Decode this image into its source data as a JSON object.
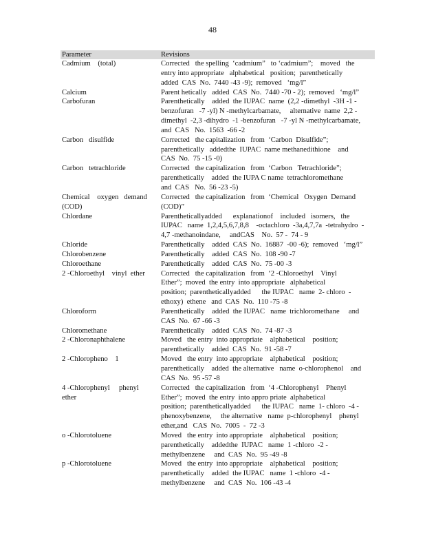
{
  "page_number": "48",
  "table": {
    "headers": [
      "Parameter",
      "Revisions"
    ],
    "rows": [
      {
        "param": [
          "Cadmium    (total)"
        ],
        "rev": [
          "Corrected   the spelling  ‘cadmium”   to ‘cadmium”;    moved   the",
          "entry into appropriate   alphabetical   position;  parenthetically",
          "added  CAS  No.  7440 -43 -9);  removed   ‘mg/l”"
        ]
      },
      {
        "param": [
          "Calcium"
        ],
        "rev": [
          "Parent hetically   added  CAS  No.  7440 -70 - 2);  removed   ‘mg/l”"
        ]
      },
      {
        "param": [
          "Carbofuran"
        ],
        "rev": [
          "Parenthetically    added  the IUPAC  name  (2,2 -dimethyl  -3H -1 -",
          "benzofuran   -7 -yl) N -methylcarbamate,     alternative  name  2,2 -",
          "dimethyl  -2,3 -dihydro  -1 -benzofuran   -7 -yl N -methylcarbamate,",
          "and  CAS   No.  1563  -66 -2"
        ]
      },
      {
        "param": [
          "Carbon   disulfide"
        ],
        "rev": [
          "Corrected   the capitalization   from  ‘Carbon  Disulfide”;",
          "parenthetically   addedthe  IUPAC  name methanedithione    and",
          "CAS  No.  75 -15 -0)"
        ]
      },
      {
        "param": [
          "Carbon   tetrachloride"
        ],
        "rev": [
          "Corrected   the capitalization   from  ‘Carbon   Tetrachloride”;",
          "parenthetically    added  the IUPA C name  tetrachloromethane",
          "and  CAS   No.  56 -23 -5)"
        ]
      },
      {
        "param": [
          "Chemical    oxygen   demand",
          "(COD)"
        ],
        "rev": [
          "Corrected   the capitalization   from  ‘Chemical   Oxygen  Demand",
          "(COD)”"
        ]
      },
      {
        "param": [
          "Chlordane"
        ],
        "rev": [
          "Parentheticallyadded      explanationof    included   isomers,   the",
          "IUPAC   name  1,2,4,5,6,7,8,8    -octachloro  -3a,4,7,7a  -tetrahydro  -",
          "4,7 -methanoindane,     andCAS    No.  57 -  74 - 9"
        ]
      },
      {
        "param": [
          "Chloride"
        ],
        "rev": [
          "Parenthetically    added  CAS  No.  16887  -00 -6);  removed   ‘mg/l”"
        ]
      },
      {
        "param": [
          "Chlorobenzene"
        ],
        "rev": [
          "Parenthetically    added  CAS  No.  108 -90 -7"
        ]
      },
      {
        "param": [
          "Chloroethane"
        ],
        "rev": [
          "Parenthetically    added  CAS  No.  75 -00 -3"
        ]
      },
      {
        "param": [
          "2 -Chloroethyl    vinyl  ether"
        ],
        "rev": [
          "Corrected   the capitalization   from  ‘2 -Chloroethyl    Vinyl",
          "Ether”;  moved  the entry  into appropriate   alphabetical",
          "position;  parentheticallyadded      the IUPAC   name  2- chloro  -",
          "ethoxy)  ethene   and  CAS  No.  110 -75 -8"
        ]
      },
      {
        "param": [
          "Chloroform"
        ],
        "rev": [
          "Parenthetically    added  the IUPAC   name  trichloromethane     and",
          "CAS  No.  67 -66 -3"
        ]
      },
      {
        "param": [
          "Chloromethane"
        ],
        "rev": [
          "Parenthetically    added  CAS  No.  74 -87 -3"
        ]
      },
      {
        "param": [
          "2 -Chloronaphthalene"
        ],
        "rev": [
          "Moved   the entry  into appropriate    alphabetical    position;",
          "parenthetically    added  CAS  No.  91 -58 -7"
        ]
      },
      {
        "param": [
          "2 -Chloropheno    1"
        ],
        "rev": [
          "Moved   the entry  into appropriate    alphabetical    position;",
          "parenthetically    added  the alternative   name  o-chlorophenol    and",
          "CAS  No.  95 -57 -8"
        ]
      },
      {
        "param": [
          "4 -Chlorophenyl     phenyl",
          "ether"
        ],
        "rev": [
          "Corrected   the capitalization   from  ‘4 -Chlorophenyl    Phenyl",
          "Ether”;  moved  the entry  into appro priate  alphabetical",
          "position;  parentheticallyadded      the IUPAC   name  1- chloro  -4 -",
          "phenoxybenzene,     the alternative   name  p-chlorophenyl    phenyl",
          "ether,and   CAS  No.  7005  -  72 -3"
        ]
      },
      {
        "param": [
          "o -Chlorotoluene"
        ],
        "rev": [
          "Moved   the entry  into appropriate    alphabetical    position;",
          "parenthetically    addedthe  IUPAC   name  1 -chloro  -2 -",
          "methylbenzene     and  CAS  No.  95 -49 -8"
        ]
      },
      {
        "param": [
          "p -Chlorotoluene"
        ],
        "rev": [
          "Moved   the entry  into appropriate    alphabetical    position;",
          "parenthetically    added  the IUPAC   name  1 -chloro  -4 -",
          "methylbenzene     and  CAS  No.  106 -43 -4"
        ]
      }
    ]
  }
}
